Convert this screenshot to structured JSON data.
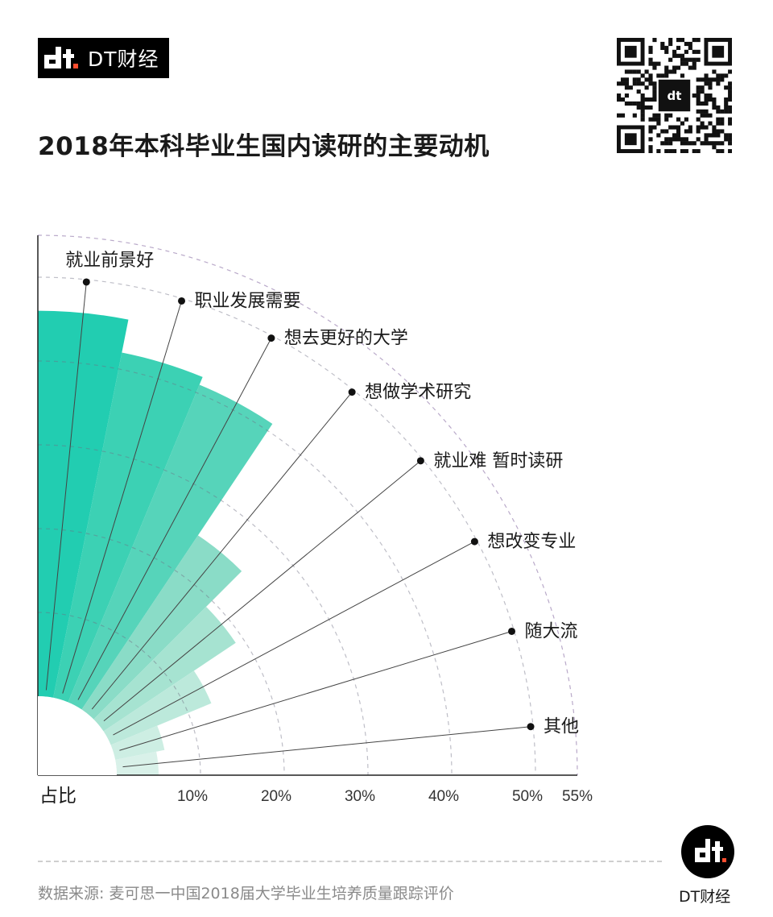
{
  "brand": {
    "logo_text": "DT财经",
    "footer_text": "DT财经"
  },
  "title": "2018年本科毕业生国内读研的主要动机",
  "source": "数据来源: 麦可思一中国2018届大学毕业生培养质量跟踪评价",
  "colors": {
    "palette": [
      "#22cdb1",
      "#3cd1b4",
      "#56d4ba",
      "#8adcc7",
      "#a6e3d1",
      "#bce9db",
      "#cdeee3",
      "#d9f1e9"
    ]
  },
  "chart_data": {
    "type": "polar-bar",
    "title": "2018年本科毕业生国内读研的主要动机",
    "axis_label": "占比",
    "categories": [
      "就业前景好",
      "职业发展需要",
      "想去更好的大学",
      "想做学术研究",
      "就业难 暂时读研",
      "想改变专业",
      "随大流",
      "其他"
    ],
    "values": [
      46,
      42,
      41,
      25,
      19,
      13,
      6,
      5
    ],
    "unit": "%",
    "rlim": [
      0,
      55
    ],
    "ticks": [
      10,
      20,
      30,
      40,
      50,
      55
    ],
    "tick_labels": [
      "10%",
      "20%",
      "30%",
      "40%",
      "50%",
      "55%"
    ],
    "grid": true
  }
}
